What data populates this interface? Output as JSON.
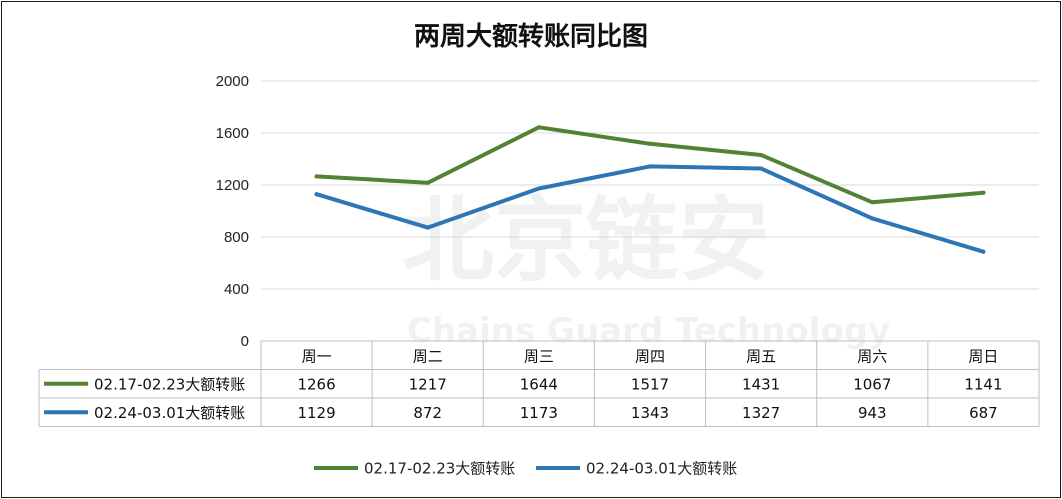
{
  "watermark": {
    "main": "北京链安",
    "sub": "Chains Guard Technology"
  },
  "chart_data": {
    "type": "line",
    "title": "两周大额转账同比图",
    "categories": [
      "周一",
      "周二",
      "周三",
      "周四",
      "周五",
      "周六",
      "周日"
    ],
    "ylim": [
      0,
      2000
    ],
    "yticks": [
      0,
      400,
      800,
      1200,
      1600,
      2000
    ],
    "grid": true,
    "legend_position": "bottom",
    "series": [
      {
        "name": "02.17-02.23大额转账",
        "color": "#548235",
        "values": [
          1266,
          1217,
          1644,
          1517,
          1431,
          1067,
          1141
        ]
      },
      {
        "name": "02.24-03.01大额转账",
        "color": "#2e75b6",
        "values": [
          1129,
          872,
          1173,
          1343,
          1327,
          943,
          687
        ]
      }
    ]
  }
}
